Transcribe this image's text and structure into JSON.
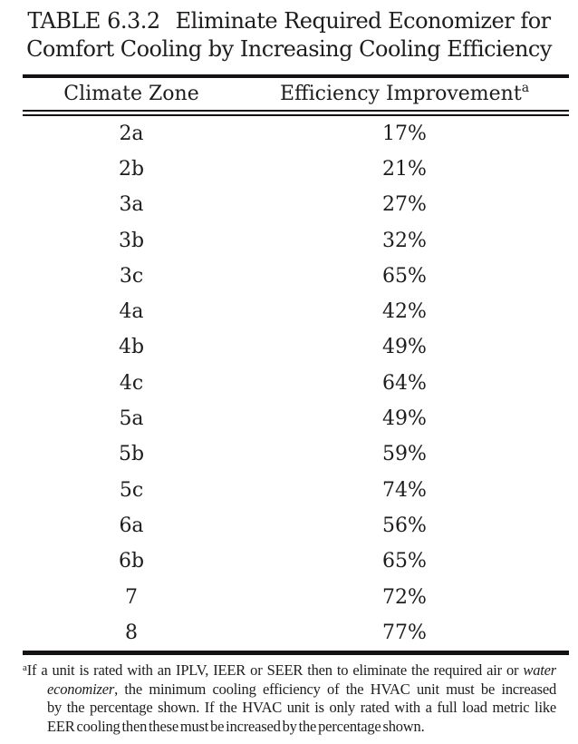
{
  "table": {
    "number": "TABLE 6.3.2",
    "title_line1": "Eliminate Required Economizer for",
    "title_line2": "Comfort Cooling by Increasing Cooling Efficiency",
    "columns": [
      {
        "label": "Climate Zone"
      },
      {
        "label": "Efficiency Improvement",
        "footnote_marker": "a"
      }
    ],
    "rows": [
      {
        "climate_zone": "2a",
        "efficiency_improvement": "17%"
      },
      {
        "climate_zone": "2b",
        "efficiency_improvement": "21%"
      },
      {
        "climate_zone": "3a",
        "efficiency_improvement": "27%"
      },
      {
        "climate_zone": "3b",
        "efficiency_improvement": "32%"
      },
      {
        "climate_zone": "3c",
        "efficiency_improvement": "65%"
      },
      {
        "climate_zone": "4a",
        "efficiency_improvement": "42%"
      },
      {
        "climate_zone": "4b",
        "efficiency_improvement": "49%"
      },
      {
        "climate_zone": "4c",
        "efficiency_improvement": "64%"
      },
      {
        "climate_zone": "5a",
        "efficiency_improvement": "49%"
      },
      {
        "climate_zone": "5b",
        "efficiency_improvement": "59%"
      },
      {
        "climate_zone": "5c",
        "efficiency_improvement": "74%"
      },
      {
        "climate_zone": "6a",
        "efficiency_improvement": "56%"
      },
      {
        "climate_zone": "6b",
        "efficiency_improvement": "65%"
      },
      {
        "climate_zone": "7",
        "efficiency_improvement": "72%"
      },
      {
        "climate_zone": "8",
        "efficiency_improvement": "77%"
      }
    ]
  },
  "footnote": {
    "marker": "a",
    "full_text": "If a unit is rated with an IPLV, IEER or SEER then to eliminate the required air or water economizer, the minimum cooling efficiency of the HVAC unit must be increased by the percentage shown. If the HVAC unit is only rated with a full load metric like EER cooling then these must be increased by the percentage shown.",
    "lines": [
      {
        "justify": true,
        "segments": [
          {
            "text": "If a unit is rated with an IPLV, IEER or SEER then to eliminate the required air or "
          },
          {
            "text": "water",
            "italic": true
          }
        ]
      },
      {
        "justify": true,
        "segments": [
          {
            "text": "economizer",
            "italic": true
          },
          {
            "text": ", the minimum cooling efficiency of the HVAC unit must be increased"
          }
        ]
      },
      {
        "justify": true,
        "segments": [
          {
            "text": "by the percentage shown. If the HVAC unit is only rated with a full load metric like"
          }
        ]
      },
      {
        "justify": false,
        "segments": [
          {
            "text": "EER cooling then these must be increased by the percentage shown."
          }
        ]
      }
    ]
  },
  "colors": {
    "text": "#1e1c1d",
    "rule": "#141213",
    "background": "#ffffff"
  }
}
